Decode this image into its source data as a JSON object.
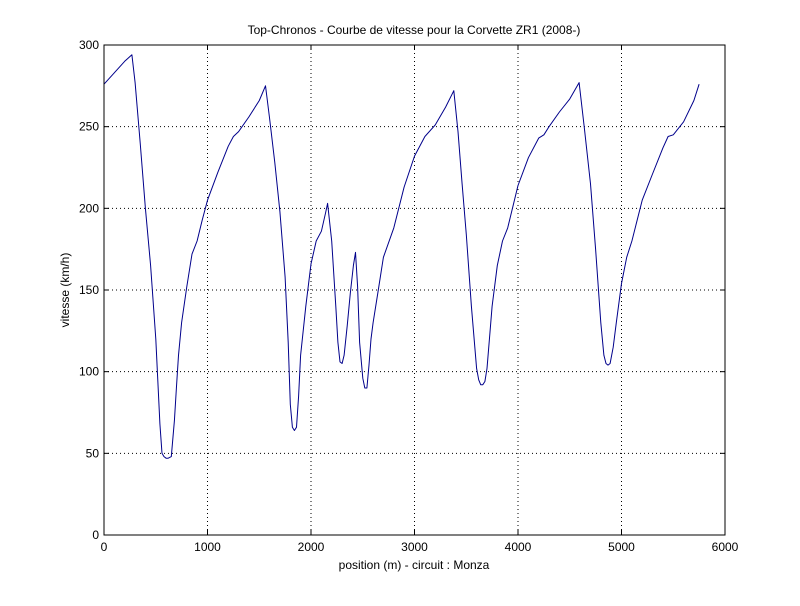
{
  "chart_data": {
    "type": "line",
    "title": "Top-Chronos - Courbe de vitesse pour la Corvette ZR1 (2008-)",
    "xlabel": "position (m) - circuit : Monza",
    "ylabel": "vitesse (km/h)",
    "xlim": [
      0,
      6000
    ],
    "ylim": [
      0,
      300
    ],
    "xticks": [
      0,
      1000,
      2000,
      3000,
      4000,
      5000,
      6000
    ],
    "yticks": [
      0,
      50,
      100,
      150,
      200,
      250,
      300
    ],
    "grid": true,
    "series": [
      {
        "color": "#00008b",
        "x": [
          0,
          100,
          200,
          270,
          300,
          350,
          400,
          450,
          500,
          540,
          560,
          580,
          600,
          620,
          650,
          680,
          700,
          720,
          750,
          800,
          850,
          900,
          950,
          1000,
          1100,
          1200,
          1250,
          1300,
          1400,
          1500,
          1560,
          1600,
          1650,
          1700,
          1750,
          1780,
          1800,
          1820,
          1840,
          1860,
          1880,
          1900,
          1950,
          2000,
          2050,
          2100,
          2140,
          2160,
          2200,
          2240,
          2260,
          2280,
          2300,
          2320,
          2350,
          2380,
          2410,
          2430,
          2450,
          2470,
          2500,
          2520,
          2540,
          2560,
          2580,
          2600,
          2650,
          2700,
          2800,
          2900,
          3000,
          3100,
          3200,
          3300,
          3380,
          3420,
          3460,
          3500,
          3550,
          3600,
          3620,
          3640,
          3660,
          3680,
          3700,
          3730,
          3750,
          3800,
          3850,
          3900,
          4000,
          4100,
          4200,
          4250,
          4300,
          4400,
          4500,
          4590,
          4640,
          4700,
          4750,
          4800,
          4830,
          4850,
          4870,
          4890,
          4920,
          4950,
          5000,
          5050,
          5100,
          5200,
          5300,
          5400,
          5450,
          5500,
          5600,
          5700,
          5750
        ],
        "y": [
          276,
          283,
          290,
          294,
          277,
          240,
          200,
          165,
          120,
          68,
          50,
          48,
          47,
          47,
          48,
          70,
          90,
          110,
          130,
          152,
          172,
          180,
          193,
          205,
          222,
          238,
          244,
          247,
          256,
          266,
          275,
          255,
          228,
          198,
          158,
          118,
          80,
          66,
          64,
          66,
          85,
          110,
          140,
          166,
          180,
          186,
          197,
          203,
          180,
          140,
          118,
          106,
          105,
          110,
          128,
          148,
          165,
          173,
          152,
          118,
          96,
          90,
          90,
          104,
          120,
          130,
          150,
          170,
          188,
          213,
          232,
          244,
          251,
          262,
          272,
          247,
          215,
          184,
          140,
          102,
          95,
          92,
          92,
          94,
          102,
          125,
          140,
          165,
          180,
          188,
          214,
          231,
          243,
          245,
          250,
          259,
          267,
          277,
          250,
          215,
          175,
          130,
          110,
          105,
          104,
          105,
          115,
          130,
          154,
          170,
          180,
          205,
          221,
          237,
          244,
          245,
          253,
          266,
          276
        ]
      }
    ]
  }
}
